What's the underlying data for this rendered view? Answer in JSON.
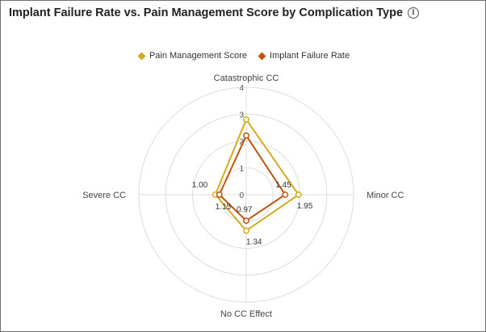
{
  "chart_data": {
    "type": "radar",
    "title": "Implant Failure Rate vs. Pain Management Score by Complication Type",
    "categories": [
      "Catastrophic CC",
      "Minor CC",
      "No CC Effect",
      "Severe CC"
    ],
    "rlim": [
      0,
      4
    ],
    "radial_ticks": [
      "0",
      "1",
      "2",
      "3",
      "4"
    ],
    "grid": true,
    "legend_position": "top",
    "series": [
      {
        "name": "Pain Management Score",
        "color": "#d4aa1e",
        "values": [
          2.8,
          1.95,
          1.34,
          1.15
        ],
        "labels": [
          "",
          "1.95",
          "1.34",
          "1.15"
        ]
      },
      {
        "name": "Implant Failure Rate",
        "color": "#c0530f",
        "values": [
          2.2,
          1.45,
          0.97,
          1.0
        ],
        "labels": [
          "",
          "1.45",
          "0.97",
          "1.00"
        ]
      }
    ]
  }
}
